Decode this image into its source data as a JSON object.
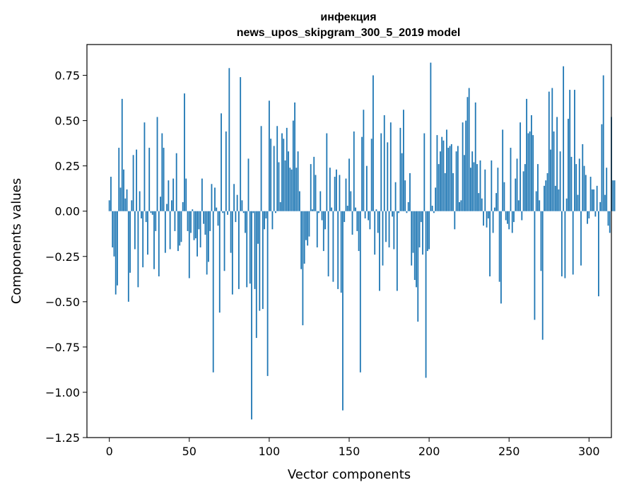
{
  "chart_data": {
    "type": "bar",
    "title": "инфекция",
    "subtitle": "news_upos_skipgram_300_5_2019 model",
    "xlabel": "Vector components",
    "ylabel": "Components values",
    "xlim": [
      -14,
      314
    ],
    "ylim": [
      -1.25,
      0.92
    ],
    "xticks": [
      0,
      50,
      100,
      150,
      200,
      250,
      300
    ],
    "xtick_labels": [
      "0",
      "50",
      "100",
      "150",
      "200",
      "250",
      "300"
    ],
    "yticks": [
      0.75,
      0.5,
      0.25,
      0.0,
      -0.25,
      -0.5,
      -0.75,
      -1.0,
      -1.25
    ],
    "ytick_labels": [
      "0.75",
      "0.50",
      "0.25",
      "0.00",
      "−0.25",
      "−0.50",
      "−0.75",
      "−1.00",
      "−1.25"
    ],
    "grid": false,
    "legend": "none",
    "color": "#1f77b4",
    "x_start": 0,
    "values": [
      0.06,
      0.19,
      -0.2,
      -0.25,
      -0.46,
      -0.41,
      0.35,
      0.13,
      0.62,
      0.23,
      0.07,
      0.12,
      -0.5,
      -0.34,
      0.06,
      0.31,
      -0.21,
      0.34,
      -0.42,
      0.11,
      -0.04,
      -0.31,
      0.49,
      -0.06,
      -0.24,
      0.35,
      -0.01,
      -0.02,
      -0.32,
      -0.11,
      0.52,
      -0.36,
      0.08,
      0.43,
      0.35,
      -0.23,
      0.04,
      0.17,
      -0.21,
      0.06,
      0.18,
      -0.11,
      0.32,
      -0.22,
      -0.19,
      -0.17,
      0.05,
      0.65,
      0.18,
      -0.11,
      -0.37,
      -0.12,
      0.01,
      -0.16,
      -0.15,
      -0.25,
      -0.1,
      -0.2,
      0.18,
      -0.07,
      -0.13,
      -0.35,
      -0.28,
      -0.11,
      0.15,
      -0.89,
      0.13,
      0.02,
      -0.08,
      -0.56,
      0.54,
      -0.01,
      -0.33,
      0.44,
      -0.02,
      0.79,
      -0.23,
      -0.46,
      0.15,
      -0.06,
      0.09,
      -0.43,
      0.74,
      0.06,
      -0.01,
      -0.12,
      -0.42,
      0.29,
      -0.4,
      -1.15,
      -0.01,
      -0.43,
      -0.7,
      -0.18,
      -0.55,
      0.47,
      -0.54,
      -0.1,
      -0.04,
      -0.91,
      0.61,
      0.4,
      -0.1,
      0.36,
      -0.01,
      0.47,
      0.27,
      0.05,
      0.43,
      0.4,
      0.28,
      0.46,
      0.33,
      0.24,
      0.23,
      0.5,
      0.6,
      0.24,
      0.33,
      0.11,
      -0.32,
      -0.63,
      -0.29,
      -0.16,
      -0.19,
      -0.14,
      0.26,
      0.01,
      0.3,
      0.2,
      -0.2,
      -0.01,
      0.11,
      -0.05,
      -0.22,
      -0.1,
      0.43,
      -0.36,
      0.24,
      0.02,
      -0.39,
      0.19,
      0.23,
      -0.43,
      0.2,
      -0.45,
      -1.1,
      -0.06,
      0.18,
      0.03,
      0.29,
      0.11,
      -0.13,
      0.44,
      0.02,
      -0.11,
      -0.22,
      -0.89,
      0.41,
      0.56,
      -0.04,
      0.25,
      -0.05,
      -0.1,
      0.4,
      0.75,
      -0.24,
      0.01,
      -0.12,
      -0.44,
      0.43,
      -0.3,
      0.53,
      -0.17,
      0.38,
      -0.2,
      0.49,
      -0.03,
      -0.21,
      0.16,
      -0.44,
      -0.01,
      0.46,
      0.32,
      0.56,
      0.17,
      -0.01,
      0.05,
      0.21,
      -0.3,
      -0.23,
      -0.38,
      -0.42,
      -0.61,
      -0.2,
      -0.06,
      -0.24,
      0.43,
      -0.92,
      -0.22,
      -0.21,
      0.82,
      0.03,
      -0.01,
      0.13,
      0.42,
      0.26,
      0.33,
      0.41,
      0.39,
      0.21,
      0.45,
      0.35,
      0.36,
      0.37,
      0.21,
      -0.1,
      0.33,
      0.36,
      0.05,
      0.06,
      0.49,
      0.31,
      0.5,
      0.63,
      0.68,
      0.24,
      0.33,
      0.27,
      0.6,
      0.26,
      0.1,
      0.28,
      0.07,
      -0.08,
      0.23,
      -0.09,
      -0.04,
      -0.36,
      0.28,
      -0.12,
      0.02,
      0.1,
      0.24,
      -0.39,
      -0.51,
      0.45,
      0.16,
      -0.05,
      -0.07,
      -0.1,
      0.35,
      -0.12,
      -0.06,
      0.18,
      0.29,
      0.06,
      0.49,
      -0.05,
      0.22,
      0.26,
      0.62,
      0.43,
      0.44,
      0.53,
      0.42,
      -0.6,
      0.11,
      0.26,
      0.06,
      -0.33,
      -0.71,
      0.14,
      0.17,
      0.21,
      0.66,
      0.34,
      0.68,
      0.44,
      0.14,
      0.52,
      0.12,
      0.33,
      -0.36,
      0.8,
      -0.37,
      0.07,
      0.51,
      0.67,
      0.3,
      -0.35,
      0.67,
      0.26,
      0.09,
      0.29,
      -0.3,
      0.37,
      0.25,
      0.2,
      -0.07,
      -0.04,
      0.19,
      0.12,
      0.12,
      -0.03,
      0.14,
      -0.47,
      0.05,
      0.48,
      0.75,
      0.09,
      0.24,
      -0.08,
      -0.12,
      0.52,
      0.17,
      0.17
    ]
  }
}
